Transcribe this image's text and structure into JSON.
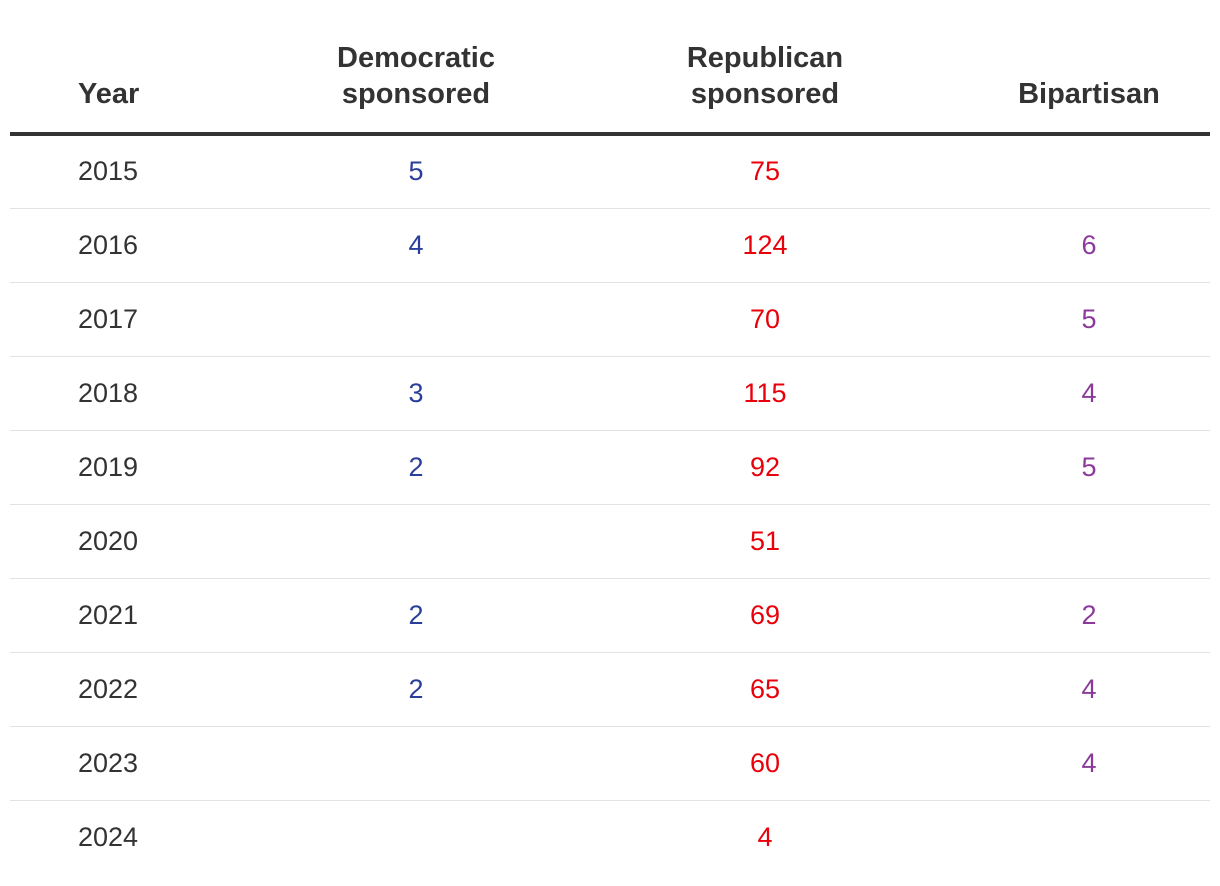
{
  "chart_data": {
    "type": "table",
    "columns": [
      {
        "key": "year",
        "label_lines": [
          "Year"
        ]
      },
      {
        "key": "dem",
        "label_lines": [
          "Democratic",
          "sponsored"
        ]
      },
      {
        "key": "rep",
        "label_lines": [
          "Republican",
          "sponsored"
        ]
      },
      {
        "key": "bip",
        "label_lines": [
          "Bipartisan"
        ]
      }
    ],
    "colors": {
      "dem": "#2a3f99",
      "rep": "#e8000b",
      "bip": "#8b3a9c",
      "text": "#333333"
    },
    "rows": [
      {
        "year": "2015",
        "dem": "5",
        "rep": "75",
        "bip": ""
      },
      {
        "year": "2016",
        "dem": "4",
        "rep": "124",
        "bip": "6"
      },
      {
        "year": "2017",
        "dem": "",
        "rep": "70",
        "bip": "5"
      },
      {
        "year": "2018",
        "dem": "3",
        "rep": "115",
        "bip": "4"
      },
      {
        "year": "2019",
        "dem": "2",
        "rep": "92",
        "bip": "5"
      },
      {
        "year": "2020",
        "dem": "",
        "rep": "51",
        "bip": ""
      },
      {
        "year": "2021",
        "dem": "2",
        "rep": "69",
        "bip": "2"
      },
      {
        "year": "2022",
        "dem": "2",
        "rep": "65",
        "bip": "4"
      },
      {
        "year": "2023",
        "dem": "",
        "rep": "60",
        "bip": "4"
      },
      {
        "year": "2024",
        "dem": "",
        "rep": "4",
        "bip": ""
      }
    ]
  }
}
